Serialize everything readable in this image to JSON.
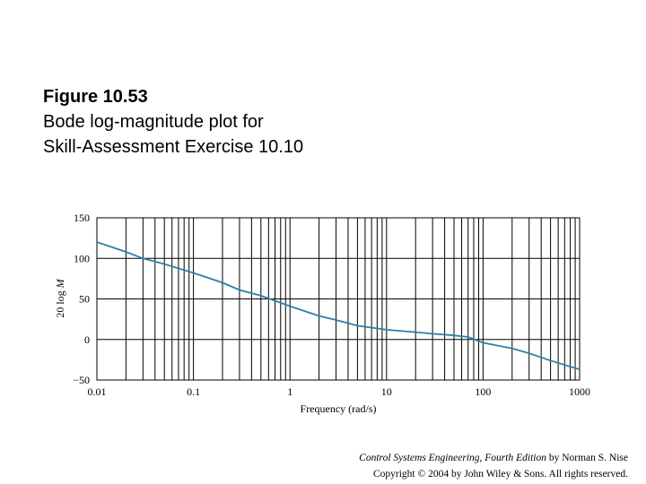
{
  "caption": {
    "figure_number": "Figure 10.53",
    "line1": "Bode log-magnitude plot for",
    "line2": "Skill-Assessment Exercise 10.10"
  },
  "credit": {
    "book_title": "Control Systems Engineering, Fourth Edition",
    "author": " by Norman S. Nise",
    "copyright": "Copyright © 2004 by John Wiley & Sons. All rights reserved."
  },
  "chart_data": {
    "type": "line",
    "title": "",
    "xlabel": "Frequency (rad/s)",
    "ylabel": "20 log M",
    "xscale": "log",
    "xlim": [
      0.01,
      1000
    ],
    "ylim": [
      -50,
      150
    ],
    "x_ticks": [
      0.01,
      0.1,
      1,
      10,
      100,
      1000
    ],
    "x_tick_labels": [
      "0.01",
      "0.1",
      "1",
      "10",
      "100",
      "1000"
    ],
    "y_ticks": [
      -50,
      0,
      50,
      100,
      150
    ],
    "y_tick_labels": [
      "−50",
      "0",
      "50",
      "100",
      "150"
    ],
    "grid": true,
    "line_color": "#2f7fa8",
    "series": [
      {
        "x": [
          0.01,
          0.02,
          0.03,
          0.05,
          0.1,
          0.2,
          0.3,
          0.5,
          1,
          2,
          3,
          5,
          10,
          20,
          30,
          50,
          70,
          100,
          200,
          300,
          500,
          1000
        ],
        "y": [
          120,
          108,
          100,
          93,
          82,
          70,
          61,
          54,
          41,
          29,
          24,
          17,
          12,
          9,
          7,
          5,
          3,
          -4,
          -11,
          -17,
          -26,
          -37
        ]
      }
    ]
  }
}
